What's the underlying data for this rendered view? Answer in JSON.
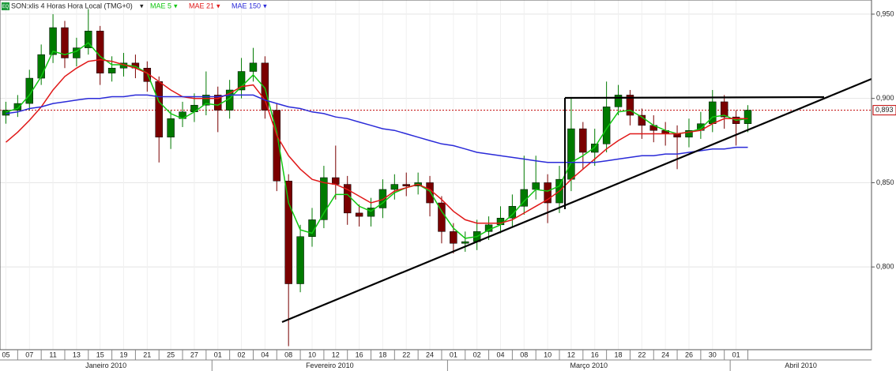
{
  "chart_data": {
    "type": "candlestick",
    "icon": "EQ",
    "title": "SON:xlis 4 Horas Hora Local (TMG+0)",
    "categories": [
      "05",
      null,
      "07",
      null,
      "11",
      null,
      "13",
      null,
      "15",
      null,
      "19",
      null,
      "21",
      null,
      "25",
      null,
      "27",
      null,
      "01",
      null,
      "02",
      null,
      "04",
      null,
      "08",
      null,
      "10",
      null,
      "12",
      null,
      "16",
      null,
      "18",
      null,
      "22",
      null,
      "24",
      null,
      "01",
      null,
      "02",
      null,
      "04",
      null,
      "08",
      null,
      "10",
      null,
      "12",
      null,
      "16",
      null,
      "18",
      null,
      "22",
      null,
      "24",
      null,
      "26",
      null,
      "30",
      null,
      "01",
      null,
      null,
      null,
      null,
      null,
      null,
      null,
      null,
      null,
      null,
      null
    ],
    "months": [
      "Janeiro 2010",
      "Fevereiro 2010",
      "Março 2010",
      "Abril 2010"
    ],
    "open": [
      0.89,
      0.893,
      0.897,
      0.912,
      0.926,
      0.942,
      0.924,
      0.93,
      0.94,
      0.915,
      0.918,
      0.921,
      0.918,
      0.91,
      0.877,
      0.888,
      0.892,
      0.896,
      0.902,
      0.893,
      0.905,
      0.916,
      0.921,
      0.893,
      0.851,
      0.79,
      0.818,
      0.828,
      0.853,
      0.849,
      0.832,
      0.83,
      0.835,
      0.846,
      0.849,
      0.848,
      0.85,
      0.838,
      0.821,
      0.814,
      0.815,
      0.821,
      0.825,
      0.829,
      0.836,
      0.846,
      0.85,
      0.838,
      0.852,
      0.882,
      0.868,
      0.873,
      0.895,
      0.902,
      0.89,
      0.884,
      0.881,
      0.879,
      0.877,
      0.881,
      0.885,
      0.898,
      0.889,
      0.885,
      null,
      null,
      null,
      null,
      null,
      null,
      null,
      null,
      null,
      null
    ],
    "high": [
      0.898,
      0.902,
      0.917,
      0.932,
      0.95,
      0.946,
      0.936,
      0.953,
      0.943,
      0.925,
      0.927,
      0.926,
      0.922,
      0.913,
      0.893,
      0.898,
      0.903,
      0.916,
      0.907,
      0.911,
      0.924,
      0.93,
      0.925,
      0.897,
      0.855,
      0.825,
      0.835,
      0.86,
      0.872,
      0.854,
      0.837,
      0.841,
      0.852,
      0.855,
      0.856,
      0.856,
      0.854,
      0.842,
      0.826,
      0.821,
      0.828,
      0.83,
      0.836,
      0.843,
      0.866,
      0.866,
      0.855,
      0.86,
      0.9,
      0.886,
      0.882,
      0.91,
      0.908,
      0.905,
      0.894,
      0.89,
      0.886,
      0.884,
      0.888,
      0.892,
      0.905,
      0.902,
      0.893,
      0.896,
      null,
      null,
      null,
      null,
      null,
      null,
      null,
      null,
      null,
      null
    ],
    "low": [
      0.885,
      0.889,
      0.893,
      0.908,
      0.921,
      0.918,
      0.919,
      0.926,
      0.908,
      0.91,
      0.913,
      0.912,
      0.904,
      0.862,
      0.87,
      0.883,
      0.886,
      0.89,
      0.88,
      0.888,
      0.9,
      0.91,
      0.888,
      0.845,
      0.753,
      0.785,
      0.812,
      0.823,
      0.84,
      0.825,
      0.824,
      0.824,
      0.829,
      0.84,
      0.842,
      0.843,
      0.83,
      0.814,
      0.808,
      0.809,
      0.81,
      0.816,
      0.82,
      0.824,
      0.831,
      0.84,
      0.826,
      0.832,
      0.845,
      0.858,
      0.86,
      0.868,
      0.89,
      0.884,
      0.876,
      0.874,
      0.872,
      0.858,
      0.871,
      0.876,
      0.88,
      0.882,
      0.872,
      0.88,
      null,
      null,
      null,
      null,
      null,
      null,
      null,
      null,
      null,
      null
    ],
    "close": [
      0.893,
      0.897,
      0.912,
      0.926,
      0.942,
      0.924,
      0.93,
      0.94,
      0.915,
      0.918,
      0.921,
      0.918,
      0.91,
      0.877,
      0.888,
      0.892,
      0.896,
      0.902,
      0.893,
      0.905,
      0.916,
      0.921,
      0.893,
      0.851,
      0.79,
      0.818,
      0.828,
      0.853,
      0.849,
      0.832,
      0.83,
      0.835,
      0.846,
      0.849,
      0.848,
      0.85,
      0.838,
      0.821,
      0.814,
      0.815,
      0.821,
      0.825,
      0.829,
      0.836,
      0.846,
      0.85,
      0.838,
      0.852,
      0.882,
      0.868,
      0.873,
      0.895,
      0.902,
      0.89,
      0.884,
      0.881,
      0.879,
      0.877,
      0.881,
      0.885,
      0.898,
      0.889,
      0.885,
      0.893,
      null,
      null,
      null,
      null,
      null,
      null,
      null,
      null,
      null,
      null
    ],
    "up_color": "#007a00",
    "down_color": "#7a0000",
    "series": [
      {
        "name": "MAE 5",
        "color": "#11c611",
        "values": [
          0.892,
          0.894,
          0.902,
          0.913,
          0.928,
          0.926,
          0.928,
          0.933,
          0.925,
          0.92,
          0.92,
          0.919,
          0.915,
          0.898,
          0.891,
          0.888,
          0.892,
          0.897,
          0.896,
          0.9,
          0.907,
          0.914,
          0.906,
          0.88,
          0.838,
          0.822,
          0.82,
          0.832,
          0.843,
          0.843,
          0.836,
          0.833,
          0.838,
          0.844,
          0.847,
          0.849,
          0.845,
          0.833,
          0.823,
          0.817,
          0.818,
          0.822,
          0.825,
          0.831,
          0.839,
          0.846,
          0.845,
          0.848,
          0.862,
          0.866,
          0.871,
          0.882,
          0.892,
          0.893,
          0.889,
          0.884,
          0.881,
          0.879,
          0.88,
          0.882,
          0.889,
          0.89,
          0.887,
          0.888,
          null,
          null,
          null,
          null,
          null,
          null,
          null,
          null,
          null,
          null
        ]
      },
      {
        "name": "MAE 21",
        "color": "#e01818",
        "values": [
          0.874,
          0.88,
          0.887,
          0.895,
          0.905,
          0.913,
          0.918,
          0.922,
          0.923,
          0.922,
          0.92,
          0.918,
          0.915,
          0.91,
          0.905,
          0.901,
          0.9,
          0.9,
          0.9,
          0.903,
          0.907,
          0.908,
          0.899,
          0.878,
          0.866,
          0.858,
          0.852,
          0.85,
          0.849,
          0.846,
          0.842,
          0.838,
          0.84,
          0.845,
          0.847,
          0.849,
          0.846,
          0.84,
          0.833,
          0.828,
          0.826,
          0.826,
          0.826,
          0.828,
          0.832,
          0.836,
          0.84,
          0.845,
          0.852,
          0.858,
          0.864,
          0.87,
          0.875,
          0.879,
          0.879,
          0.879,
          0.879,
          0.879,
          0.88,
          0.881,
          0.885,
          0.888,
          0.888,
          0.888,
          null,
          null,
          null,
          null,
          null,
          null,
          null,
          null,
          null,
          null
        ]
      },
      {
        "name": "MAE 150",
        "color": "#2a2ad8",
        "values": [
          0.891,
          0.892,
          0.894,
          0.895,
          0.897,
          0.898,
          0.899,
          0.9,
          0.9,
          0.901,
          0.901,
          0.902,
          0.902,
          0.901,
          0.901,
          0.901,
          0.901,
          0.901,
          0.901,
          0.902,
          0.902,
          0.902,
          0.899,
          0.897,
          0.895,
          0.894,
          0.892,
          0.891,
          0.889,
          0.888,
          0.886,
          0.884,
          0.882,
          0.881,
          0.879,
          0.877,
          0.875,
          0.873,
          0.872,
          0.87,
          0.868,
          0.867,
          0.866,
          0.865,
          0.864,
          0.863,
          0.862,
          0.862,
          0.862,
          0.862,
          0.862,
          0.863,
          0.864,
          0.865,
          0.866,
          0.866,
          0.867,
          0.867,
          0.868,
          0.869,
          0.87,
          0.87,
          0.871,
          0.871,
          null,
          null,
          null,
          null,
          null,
          null,
          null,
          null,
          null,
          null
        ]
      }
    ],
    "last_price": {
      "value": 0.893,
      "label": "0,893"
    },
    "last_price_color": "#c00000",
    "ylim": [
      0.7509,
      0.9584
    ],
    "yticks": [
      {
        "value": 0.95,
        "label": "0,950"
      },
      {
        "value": 0.9,
        "label": "0,900"
      },
      {
        "value": 0.85,
        "label": "0,850"
      },
      {
        "value": 0.8,
        "label": "0,800"
      }
    ],
    "grid": true
  }
}
